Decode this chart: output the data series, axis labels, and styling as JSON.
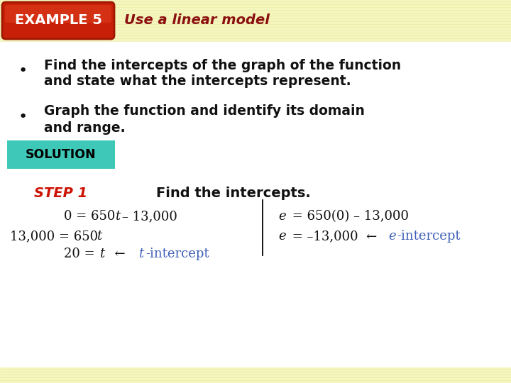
{
  "bg_color": "#fffef0",
  "header_stripe_color": "#f5f5c0",
  "header_bg": "#c8200a",
  "header_text": "EXAMPLE 5",
  "header_text_color": "#ffffff",
  "title_text": "Use a linear model",
  "title_color": "#8B1010",
  "solution_bg": "#3ec8b8",
  "solution_text": "SOLUTION",
  "step_text": "STEP 1",
  "step_color": "#cc1100",
  "bullet1_line1": "Find the intercepts of the graph of the function",
  "bullet1_line2": "and state what the intercepts represent.",
  "bullet2_line1": "Graph the function and identify its domain",
  "bullet2_line2": "and range.",
  "step_desc": "Find the intercepts.",
  "blue_color": "#4060b8",
  "black": "#111111",
  "bottom_stripe": "#f5f5c0"
}
